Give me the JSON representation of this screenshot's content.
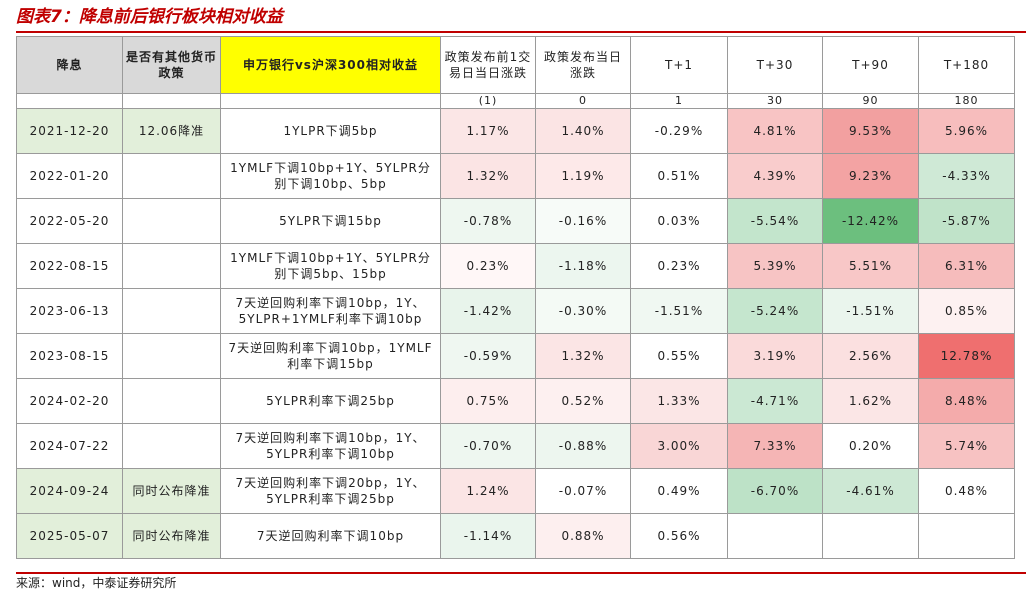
{
  "title": "图表7：降息前后银行板块相对收益",
  "table": {
    "header": [
      "降息",
      "是否有其他货币政策",
      "申万银行vs沪深300相对收益",
      "政策发布前1交易日当日涨跌",
      "政策发布当日涨跌",
      "T+1",
      "T+30",
      "T+90",
      "T+180"
    ],
    "subheader": [
      "(1)",
      "0",
      "1",
      "30",
      "90",
      "180"
    ],
    "rows": [
      [
        "2021-12-20",
        "12.06降准",
        "1YLPR下调5bp",
        "1.17%",
        "1.40%",
        "-0.29%",
        "4.81%",
        "9.53%",
        "5.96%"
      ],
      [
        "2022-01-20",
        null,
        "1YMLF下调10bp+1Y、5YLPR分别下调10bp、5bp",
        "1.32%",
        "1.19%",
        "0.51%",
        "4.39%",
        "9.23%",
        "-4.33%"
      ],
      [
        "2022-05-20",
        null,
        "5YLPR下调15bp",
        "-0.78%",
        "-0.16%",
        "0.03%",
        "-5.54%",
        "-12.42%",
        "-5.87%"
      ],
      [
        "2022-08-15",
        null,
        "1YMLF下调10bp+1Y、5YLPR分别下调5bp、15bp",
        "0.23%",
        "-1.18%",
        "0.23%",
        "5.39%",
        "5.51%",
        "6.31%"
      ],
      [
        "2023-06-13",
        null,
        "7天逆回购利率下调10bp，1Y、5YLPR+1YMLF利率下调10bp",
        "-1.42%",
        "-0.30%",
        "-1.51%",
        "-5.24%",
        "-1.51%",
        "0.85%"
      ],
      [
        "2023-08-15",
        null,
        "7天逆回购利率下调10bp，1YMLF利率下调15bp",
        "-0.59%",
        "1.32%",
        "0.55%",
        "3.19%",
        "2.56%",
        "12.78%"
      ],
      [
        "2024-02-20",
        null,
        "5YLPR利率下调25bp",
        "0.75%",
        "0.52%",
        "1.33%",
        "-4.71%",
        "1.62%",
        "8.48%"
      ],
      [
        "2024-07-22",
        null,
        "7天逆回购利率下调10bp，1Y、5YLPR利率下调10bp",
        "-0.70%",
        "-0.88%",
        "3.00%",
        "7.33%",
        "0.20%",
        "5.74%"
      ],
      [
        "2024-09-24",
        "同时公布降准",
        "7天逆回购利率下调20bp，1Y、5YLPR利率下调25bp",
        "1.24%",
        "-0.07%",
        "0.49%",
        "-6.70%",
        "-4.61%",
        "0.48%"
      ],
      [
        "2025-05-07",
        "同时公布降准",
        "7天逆回购利率下调10bp",
        "-1.14%",
        "0.88%",
        "0.56%"
      ]
    ],
    "cell_colors": [
      [
        "#e2efda",
        "#e2efda",
        "#ffffff",
        "#fbe6e6",
        "#fbe4e4",
        "#ffffff",
        "#f8c4c4",
        "#f2a0a0",
        "#f7bdbd"
      ],
      [
        "#ffffff",
        "#ffffff",
        "#ffffff",
        "#fbe4e4",
        "#fde9e9",
        "#ffffff",
        "#f9cccc",
        "#f3a3a3",
        "#cfe9d6"
      ],
      [
        "#ffffff",
        "#ffffff",
        "#ffffff",
        "#eef7f0",
        "#f7fbf8",
        "#ffffff",
        "#c3e5cc",
        "#6cbf7e",
        "#c0e3c9"
      ],
      [
        "#ffffff",
        "#ffffff",
        "#ffffff",
        "#fff7f7",
        "#ecf6ef",
        "#ffffff",
        "#f7c4c4",
        "#f8c7c7",
        "#f6bcbc"
      ],
      [
        "#ffffff",
        "#ffffff",
        "#ffffff",
        "#e8f4eb",
        "#f4faf5",
        "#f0f8f2",
        "#c5e6ce",
        "#eaf5ed",
        "#fdf1f1"
      ],
      [
        "#ffffff",
        "#ffffff",
        "#ffffff",
        "#eff7f1",
        "#fbe5e5",
        "#ffffff",
        "#fadada",
        "#fbe0e0",
        "#ef6f6f"
      ],
      [
        "#ffffff",
        "#ffffff",
        "#ffffff",
        "#fdeeee",
        "#fdf0f0",
        "#fbe6e6",
        "#cbe8d3",
        "#fbe6e6",
        "#f4abab"
      ],
      [
        "#ffffff",
        "#ffffff",
        "#ffffff",
        "#eef7f0",
        "#edf6ef",
        "#f9d6d6",
        "#f5b5b5",
        "#ffffff",
        "#f7c2c2"
      ],
      [
        "#e2efda",
        "#e2efda",
        "#ffffff",
        "#fbe5e5",
        "#ffffff",
        "#ffffff",
        "#bde2c7",
        "#cde8d4",
        "#ffffff"
      ],
      [
        "#e2efda",
        "#e2efda",
        "#ffffff",
        "#eaf5ed",
        "#fdefef",
        "#ffffff",
        "#ffffff",
        "#ffffff",
        "#ffffff"
      ]
    ]
  },
  "source": "来源：wind，中泰证券研究所"
}
